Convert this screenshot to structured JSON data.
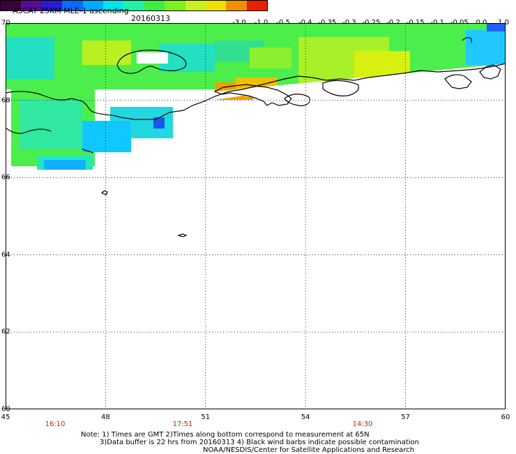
{
  "header": {
    "title": "ASCAT 25KM MLE-1 ascending",
    "date": "20160313"
  },
  "colorbar": {
    "ticks": [
      "-3.0",
      "-1.0",
      "-0.5",
      "-0.4",
      "-0.35",
      "-0.3",
      "-0.25",
      "-0.2",
      "-0.15",
      "-0.1",
      "-0.05",
      "0.0",
      "1.0"
    ],
    "colors": [
      "#3a0040",
      "#5a0a9a",
      "#2a1ad8",
      "#0a6aff",
      "#00aaff",
      "#00e6ee",
      "#20f0a8",
      "#40ee40",
      "#7cf020",
      "#c8f020",
      "#f0e000",
      "#f09000",
      "#e82000"
    ]
  },
  "map": {
    "lat_labels": [
      "70",
      "68",
      "66",
      "64",
      "62",
      "60"
    ],
    "lon_labels": [
      "45",
      "48",
      "51",
      "54",
      "57",
      "60"
    ],
    "time_labels": [
      "16:10",
      "17:51",
      "14:30"
    ],
    "land_color": "#ffffff",
    "grid_color": "#000000"
  },
  "footer": {
    "note_line1": "Note: 1) Times are GMT 2)Times along bottom correspond to measurement at 65N",
    "note_line2": "3)Data buffer is 22 hrs from 20160313 4) Black wind barbs indicate possible contamination",
    "credit": "NOAA/NESDIS/Center for Satellite Applications and Research"
  }
}
